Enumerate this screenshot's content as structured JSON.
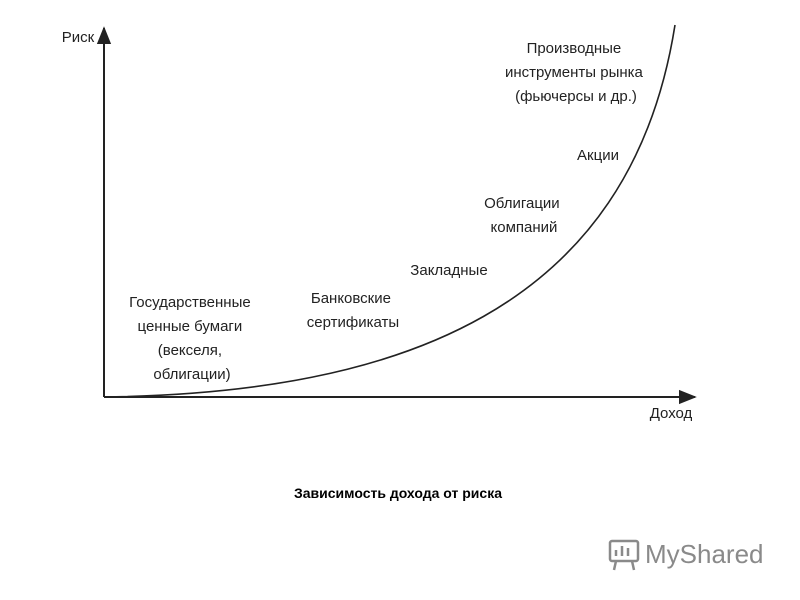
{
  "axes": {
    "y_label": "Риск",
    "x_label": "Доход"
  },
  "labels": [
    {
      "lines": [
        "Государственные",
        "ценные бумаги",
        "(векселя,",
        "облигации)"
      ]
    },
    {
      "lines": [
        "Банковские",
        "сертификаты"
      ]
    },
    {
      "lines": [
        "Закладные"
      ]
    },
    {
      "lines": [
        "Облигации",
        "компаний"
      ]
    },
    {
      "lines": [
        "Акции"
      ]
    },
    {
      "lines": [
        "Производные",
        "инструменты рынка",
        "(фьючерсы и др.)"
      ]
    }
  ],
  "caption": "Зависимость дохода от риска",
  "watermark": "MyShared"
}
